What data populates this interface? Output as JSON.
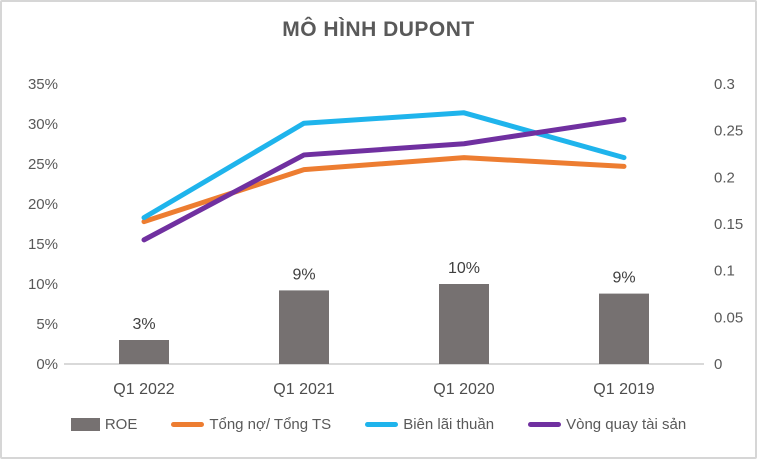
{
  "chart_data": {
    "type": "bar",
    "subtype": "combo-bar-line-two-axes",
    "title": "MÔ HÌNH DUPONT",
    "categories": [
      "Q1 2022",
      "Q1 2021",
      "Q1 2020",
      "Q1 2019"
    ],
    "left_axis": {
      "min": 0,
      "max": 35,
      "unit": "percent",
      "tick_labels": [
        "0%",
        "5%",
        "10%",
        "15%",
        "20%",
        "25%",
        "30%",
        "35%"
      ]
    },
    "right_axis": {
      "min": 0,
      "max": 0.3,
      "tick_labels": [
        "0",
        "0.05",
        "0.1",
        "0.15",
        "0.2",
        "0.25",
        "0.3"
      ]
    },
    "series": [
      {
        "name": "ROE",
        "type": "bar",
        "axis": "left",
        "color": "#767171",
        "values": [
          3,
          9.2,
          10,
          8.8
        ],
        "data_labels": [
          "3%",
          "9%",
          "10%",
          "9%"
        ]
      },
      {
        "name": "Tổng nợ/ Tổng TS",
        "type": "line",
        "axis": "left",
        "color": "#ED7D31",
        "values": [
          17.8,
          24.3,
          25.8,
          24.7
        ]
      },
      {
        "name": "Biên lãi thuần",
        "type": "line",
        "axis": "left",
        "color": "#1FB4EC",
        "values": [
          18.3,
          30.1,
          31.4,
          25.8
        ]
      },
      {
        "name": "Vòng quay tài sản",
        "type": "line",
        "axis": "right",
        "color": "#7030A0",
        "values": [
          0.133,
          0.224,
          0.236,
          0.262
        ]
      }
    ],
    "legend": {
      "position": "bottom",
      "entries": [
        {
          "label": "ROE",
          "swatch": "bar",
          "color": "#767171"
        },
        {
          "label": "Tổng nợ/ Tổng TS",
          "swatch": "line",
          "color": "#ED7D31"
        },
        {
          "label": "Biên lãi thuần",
          "swatch": "line",
          "color": "#1FB4EC"
        },
        {
          "label": "Vòng quay tài sản",
          "swatch": "line",
          "color": "#7030A0"
        }
      ]
    },
    "grid": false
  },
  "colors": {
    "title": "#595959",
    "axis_labels": "#595959",
    "x_labels": "#4d4d4d",
    "data_labels": "#404040",
    "axis_line": "#d9d9d9",
    "frame_border": "#d6d6d6",
    "background": "#ffffff"
  }
}
